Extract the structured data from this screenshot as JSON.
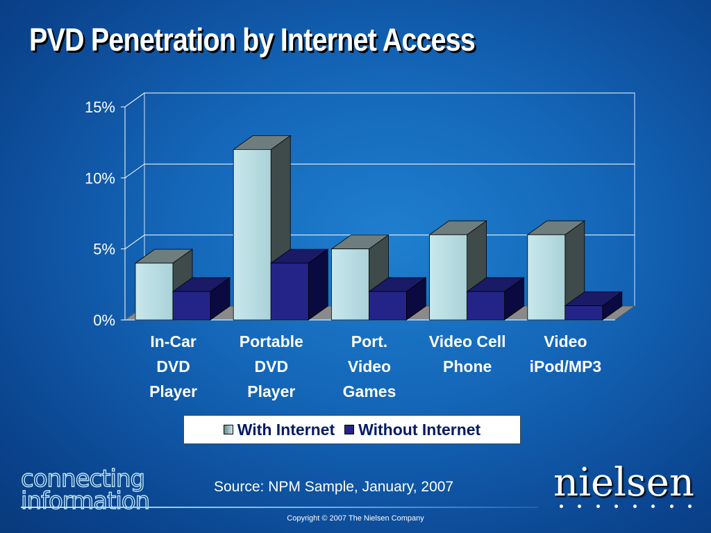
{
  "slide": {
    "title": "PVD Penetration by Internet Access",
    "source": "Source:  NPM Sample, January, 2007",
    "copyright": "Copyright  ©  2007 The Nielsen Company",
    "logo_left_line1": "connecting",
    "logo_left_line2": "information",
    "logo_right": "nielsen"
  },
  "colors": {
    "background": "#1466b8",
    "with_internet_front": "#b8dfe4",
    "with_internet_side": "#3f4a4a",
    "without_internet_front": "#242488",
    "without_internet_side": "#0a0a40",
    "gridline": "#ffffff"
  },
  "chart_data": {
    "type": "bar",
    "categories": [
      [
        "In-Car",
        "DVD",
        "Player"
      ],
      [
        "Portable",
        "DVD",
        "Player"
      ],
      [
        "Port.",
        "Video",
        "Games"
      ],
      [
        "Video Cell",
        "Phone"
      ],
      [
        "Video",
        "iPod/MP3"
      ]
    ],
    "series": [
      {
        "name": "With Internet",
        "values": [
          4,
          12,
          5,
          6,
          6
        ]
      },
      {
        "name": "Without Internet",
        "values": [
          2,
          4,
          2,
          2,
          1
        ]
      }
    ],
    "yticks": [
      "0%",
      "5%",
      "10%",
      "15%"
    ],
    "ylim": [
      0,
      15
    ],
    "grid": true,
    "legend_position": "bottom",
    "three_d": true
  }
}
